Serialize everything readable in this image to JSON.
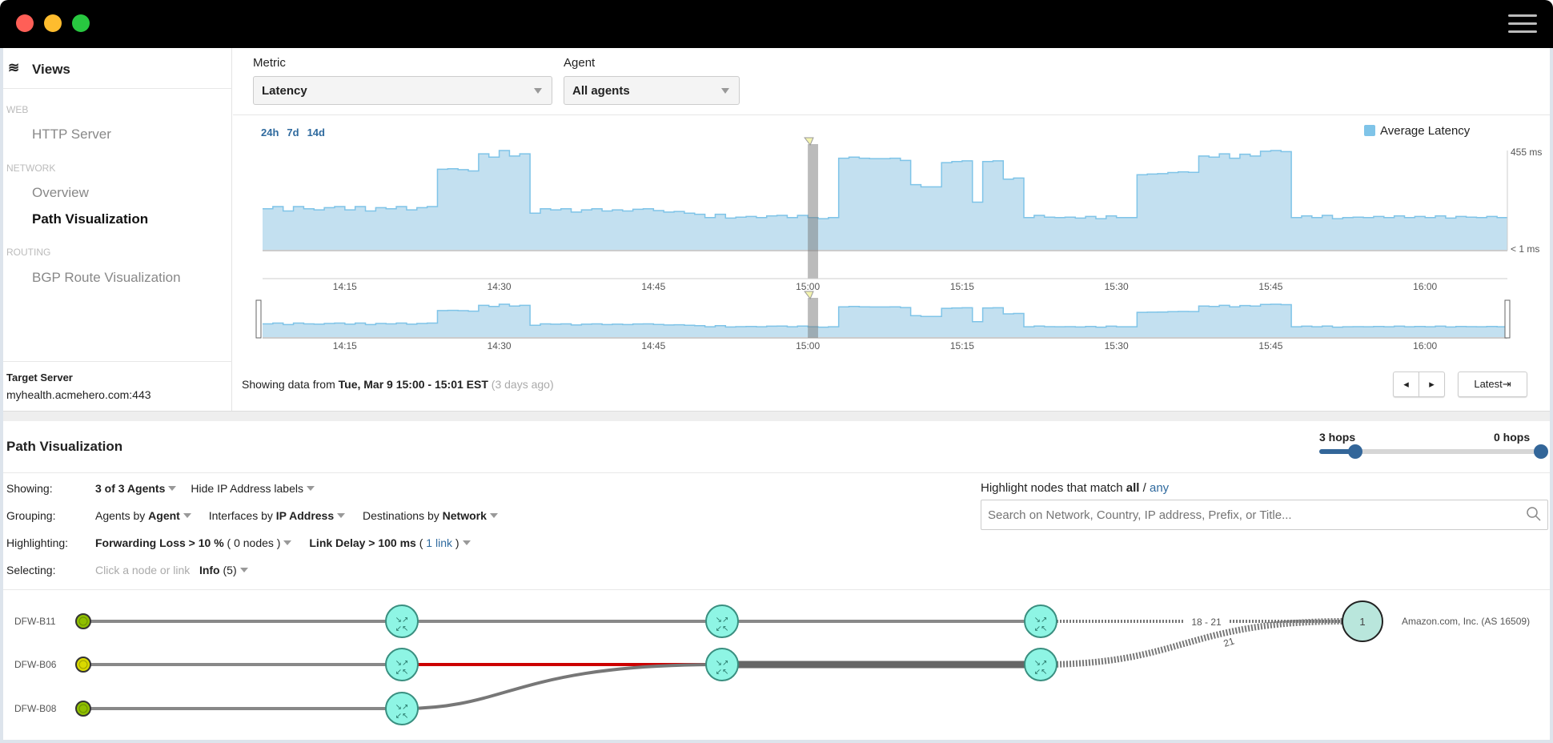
{
  "window": {
    "controls": [
      "close",
      "minimize",
      "maximize"
    ],
    "menu_icon": "hamburger-icon"
  },
  "sidebar": {
    "title": "Views",
    "icon": "layers-icon",
    "sections": [
      {
        "label": "WEB",
        "items": [
          {
            "label": "HTTP Server",
            "active": false
          }
        ]
      },
      {
        "label": "NETWORK",
        "items": [
          {
            "label": "Overview",
            "active": false
          },
          {
            "label": "Path Visualization",
            "active": true
          }
        ]
      },
      {
        "label": "ROUTING",
        "items": [
          {
            "label": "BGP Route Visualization",
            "active": false
          }
        ]
      }
    ],
    "target_label": "Target Server",
    "target_value": "myhealth.acmehero.com:443"
  },
  "filters": {
    "metric_label": "Metric",
    "metric_value": "Latency",
    "agent_label": "Agent",
    "agent_value": "All agents"
  },
  "ranges": [
    "24h",
    "7d",
    "14d"
  ],
  "chart_data": {
    "type": "area",
    "legend": "Average Latency",
    "legend_position": "top-right",
    "color": "#7fc4e8",
    "ylim": [
      0,
      455
    ],
    "y_top_label": "455 ms",
    "y_bottom_label": "< 1 ms",
    "x_start": "14:07",
    "x_end": "16:08",
    "tick_labels": [
      "14:15",
      "14:30",
      "14:45",
      "15:00",
      "15:15",
      "15:30",
      "15:45",
      "16:00"
    ],
    "selected": {
      "start": "15:00",
      "end": "15:01"
    },
    "values": [
      190,
      200,
      180,
      200,
      190,
      185,
      195,
      200,
      185,
      200,
      180,
      195,
      190,
      200,
      185,
      195,
      200,
      370,
      372,
      368,
      362,
      440,
      425,
      455,
      430,
      440,
      170,
      190,
      185,
      190,
      175,
      185,
      190,
      180,
      185,
      180,
      188,
      190,
      182,
      175,
      178,
      170,
      165,
      150,
      165,
      148,
      152,
      155,
      150,
      158,
      160,
      150,
      160,
      150,
      145,
      150,
      420,
      425,
      420,
      418,
      418,
      420,
      410,
      300,
      290,
      290,
      400,
      405,
      408,
      220,
      405,
      408,
      325,
      330,
      150,
      160,
      152,
      150,
      152,
      148,
      155,
      145,
      158,
      150,
      150,
      345,
      348,
      350,
      355,
      358,
      356,
      430,
      425,
      440,
      420,
      438,
      430,
      452,
      455,
      450,
      150,
      158,
      150,
      160,
      145,
      150,
      152,
      150,
      155,
      150,
      158,
      150,
      155,
      150,
      158,
      148,
      155,
      152,
      150,
      155,
      150
    ]
  },
  "status": {
    "prefix": "Showing data from ",
    "range": "Tue, Mar 9 15:00 - 15:01 EST",
    "ago": "(3 days ago)"
  },
  "nav": {
    "latest_label": "Latest⇥"
  },
  "path": {
    "title": "Path Visualization",
    "hops": {
      "left_label": "3 hops",
      "right_label": "0 hops",
      "value": 3
    },
    "rows": [
      {
        "label": "Showing:"
      },
      {
        "label": "Grouping:"
      },
      {
        "label": "Highlighting:"
      },
      {
        "label": "Selecting:"
      }
    ],
    "showing": {
      "agents": "3 of 3 Agents",
      "ip_labels": "Hide IP Address labels"
    },
    "grouping": {
      "agents_pre": "Agents by ",
      "agents_val": "Agent",
      "ifaces_pre": "Interfaces by ",
      "ifaces_val": "IP Address",
      "dest_pre": "Destinations by ",
      "dest_val": "Network"
    },
    "highlighting": {
      "loss": "Forwarding Loss > 10 %",
      "loss_count": "( 0 nodes )",
      "delay": "Link Delay > 100 ms",
      "delay_open": "( ",
      "delay_count": "1 link",
      "delay_close": " )"
    },
    "selecting": {
      "hint": "Click a node or link",
      "info": "Info",
      "info_count": "(5)"
    },
    "highlight": {
      "prefix": "Highlight nodes that match ",
      "all": "all",
      "sep": " / ",
      "any": "any",
      "placeholder": "Search on Network, Country, IP address, Prefix, or Title..."
    },
    "agents": [
      "DFW-B11",
      "DFW-B06",
      "DFW-B08"
    ],
    "link_labels": [
      "18 - 21",
      "21"
    ],
    "destination": {
      "count": "1",
      "label": "Amazon.com, Inc. (AS 16509)"
    },
    "colors": {
      "router": "#8ef5e4",
      "agent_ok": "#8fbf00",
      "agent_warn": "#d9d900",
      "delay_link": "#cc0000",
      "dest": "#b9e6dc"
    }
  }
}
